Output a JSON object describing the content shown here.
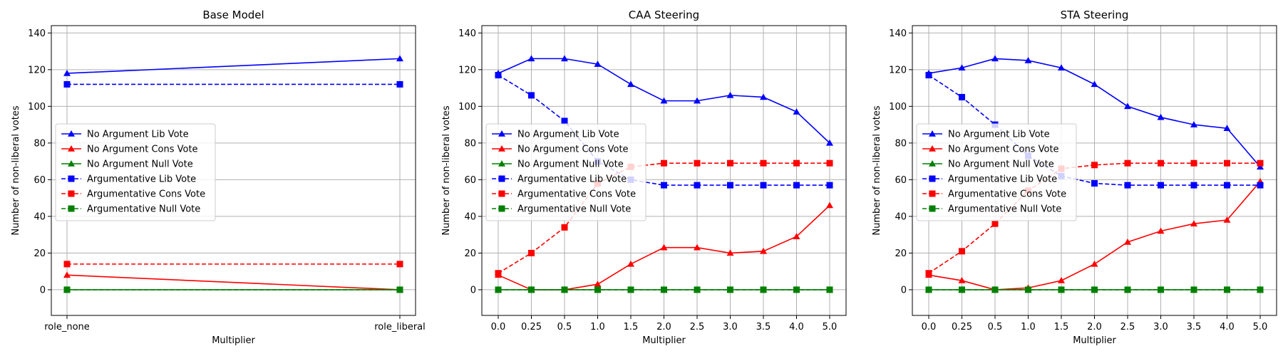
{
  "colors": {
    "lib": "#0000ff",
    "cons": "#ff0000",
    "null": "#008000",
    "grid": "#b0b0b0"
  },
  "chart_data": [
    {
      "type": "line",
      "title": "Base Model",
      "xlabel": "Multiplier",
      "ylabel": "Number of non-liberal votes",
      "categories": [
        "role_none",
        "role_liberal"
      ],
      "ylim": [
        -14,
        144
      ],
      "yticks": [
        0,
        20,
        40,
        60,
        80,
        100,
        120,
        140
      ],
      "grid": true,
      "legend_position": "center-left",
      "series": [
        {
          "name": "No Argument Lib Vote",
          "color": "blue",
          "style": "solid",
          "marker": "triangle",
          "values": [
            118,
            126
          ]
        },
        {
          "name": "No Argument Cons Vote",
          "color": "red",
          "style": "solid",
          "marker": "triangle",
          "values": [
            8,
            0
          ]
        },
        {
          "name": "No Argument Null Vote",
          "color": "green",
          "style": "solid",
          "marker": "triangle",
          "values": [
            0,
            0
          ]
        },
        {
          "name": "Argumentative Lib Vote",
          "color": "blue",
          "style": "dashed",
          "marker": "square",
          "values": [
            112,
            112
          ]
        },
        {
          "name": "Argumentative Cons Vote",
          "color": "red",
          "style": "dashed",
          "marker": "square",
          "values": [
            14,
            14
          ]
        },
        {
          "name": "Argumentative Null Vote",
          "color": "green",
          "style": "dashed",
          "marker": "square",
          "values": [
            0,
            0
          ]
        }
      ]
    },
    {
      "type": "line",
      "title": "CAA Steering",
      "xlabel": "Multiplier",
      "ylabel": "Number of non-liberal votes",
      "categories": [
        "0.0",
        "0.25",
        "0.5",
        "1.0",
        "1.5",
        "2.0",
        "2.5",
        "3.0",
        "3.5",
        "4.0",
        "5.0"
      ],
      "ylim": [
        -14,
        144
      ],
      "yticks": [
        0,
        20,
        40,
        60,
        80,
        100,
        120,
        140
      ],
      "grid": true,
      "legend_position": "center-left",
      "series": [
        {
          "name": "No Argument Lib Vote",
          "color": "blue",
          "style": "solid",
          "marker": "triangle",
          "values": [
            118,
            126,
            126,
            123,
            112,
            103,
            103,
            106,
            105,
            97,
            80
          ]
        },
        {
          "name": "No Argument Cons Vote",
          "color": "red",
          "style": "solid",
          "marker": "triangle",
          "values": [
            8,
            0,
            0,
            3,
            14,
            23,
            23,
            20,
            21,
            29,
            46
          ]
        },
        {
          "name": "No Argument Null Vote",
          "color": "green",
          "style": "solid",
          "marker": "triangle",
          "values": [
            0,
            0,
            0,
            0,
            0,
            0,
            0,
            0,
            0,
            0,
            0
          ]
        },
        {
          "name": "Argumentative Lib Vote",
          "color": "blue",
          "style": "dashed",
          "marker": "square",
          "values": [
            117,
            106,
            92,
            70,
            60,
            57,
            57,
            57,
            57,
            57,
            57
          ]
        },
        {
          "name": "Argumentative Cons Vote",
          "color": "red",
          "style": "dashed",
          "marker": "square",
          "values": [
            9,
            20,
            34,
            58,
            67,
            69,
            69,
            69,
            69,
            69,
            69
          ]
        },
        {
          "name": "Argumentative Null Vote",
          "color": "green",
          "style": "dashed",
          "marker": "square",
          "values": [
            0,
            0,
            0,
            0,
            0,
            0,
            0,
            0,
            0,
            0,
            0
          ]
        }
      ]
    },
    {
      "type": "line",
      "title": "STA Steering",
      "xlabel": "Multiplier",
      "ylabel": "Number of non-liberal votes",
      "categories": [
        "0.0",
        "0.25",
        "0.5",
        "1.0",
        "1.5",
        "2.0",
        "2.5",
        "3.0",
        "3.5",
        "4.0",
        "5.0"
      ],
      "ylim": [
        -14,
        144
      ],
      "yticks": [
        0,
        20,
        40,
        60,
        80,
        100,
        120,
        140
      ],
      "grid": true,
      "legend_position": "center-left",
      "series": [
        {
          "name": "No Argument Lib Vote",
          "color": "blue",
          "style": "solid",
          "marker": "triangle",
          "values": [
            118,
            121,
            126,
            125,
            121,
            112,
            100,
            94,
            90,
            88,
            67
          ]
        },
        {
          "name": "No Argument Cons Vote",
          "color": "red",
          "style": "solid",
          "marker": "triangle",
          "values": [
            8,
            5,
            0,
            1,
            5,
            14,
            26,
            32,
            36,
            38,
            59
          ]
        },
        {
          "name": "No Argument Null Vote",
          "color": "green",
          "style": "solid",
          "marker": "triangle",
          "values": [
            0,
            0,
            0,
            0,
            0,
            0,
            0,
            0,
            0,
            0,
            0
          ]
        },
        {
          "name": "Argumentative Lib Vote",
          "color": "blue",
          "style": "dashed",
          "marker": "square",
          "values": [
            117,
            105,
            90,
            73,
            62,
            58,
            57,
            57,
            57,
            57,
            57
          ]
        },
        {
          "name": "Argumentative Cons Vote",
          "color": "red",
          "style": "dashed",
          "marker": "square",
          "values": [
            9,
            21,
            36,
            54,
            66,
            68,
            69,
            69,
            69,
            69,
            69
          ]
        },
        {
          "name": "Argumentative Null Vote",
          "color": "green",
          "style": "dashed",
          "marker": "square",
          "values": [
            0,
            0,
            0,
            0,
            0,
            0,
            0,
            0,
            0,
            0,
            0
          ]
        }
      ]
    }
  ]
}
